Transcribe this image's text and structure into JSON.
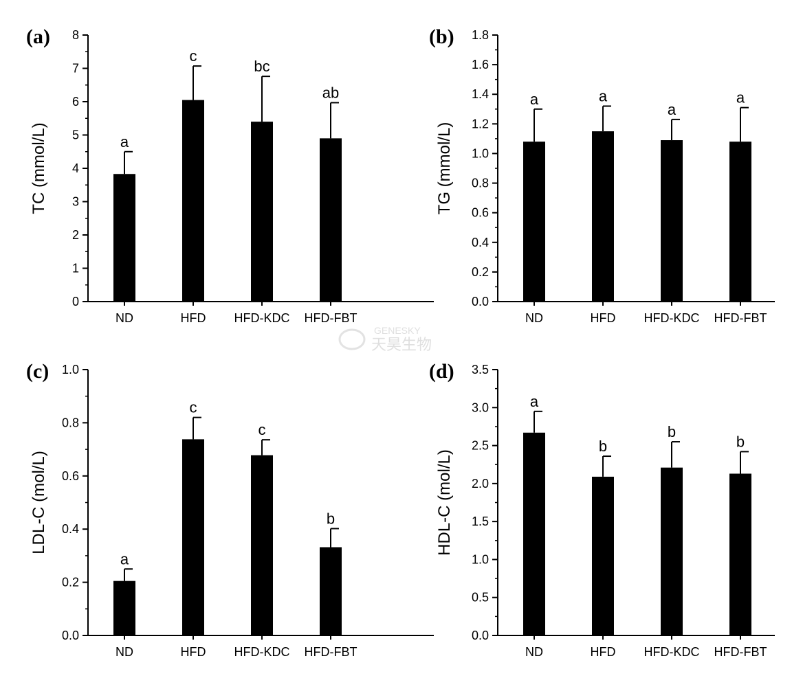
{
  "watermark": {
    "brand": "GENESKY",
    "cn": "天昊生物"
  },
  "colors": {
    "bar": "#000000",
    "axis": "#000000",
    "background": "#ffffff"
  },
  "chart_data": [
    {
      "type": "bar",
      "panel_label": "(a)",
      "ylabel": "TC (mmol/L)",
      "categories": [
        "ND",
        "HFD",
        "HFD-KDC",
        "HFD-FBT"
      ],
      "values": [
        3.83,
        6.05,
        5.4,
        4.9
      ],
      "error": [
        0.67,
        1.02,
        1.36,
        1.07
      ],
      "significance": [
        "a",
        "c",
        "bc",
        "ab"
      ],
      "ylim": [
        0,
        8
      ],
      "yticks": [
        "0",
        "1",
        "2",
        "3",
        "4",
        "5",
        "6",
        "7",
        "8"
      ]
    },
    {
      "type": "bar",
      "panel_label": "(b)",
      "ylabel": "TG (mmol/L)",
      "categories": [
        "ND",
        "HFD",
        "HFD-KDC",
        "HFD-FBT"
      ],
      "values": [
        1.08,
        1.15,
        1.09,
        1.08
      ],
      "error": [
        0.22,
        0.17,
        0.14,
        0.23
      ],
      "significance": [
        "a",
        "a",
        "a",
        "a"
      ],
      "ylim": [
        0,
        1.8
      ],
      "yticks": [
        "0.0",
        "0.2",
        "0.4",
        "0.6",
        "0.8",
        "1.0",
        "1.2",
        "1.4",
        "1.6",
        "1.8"
      ]
    },
    {
      "type": "bar",
      "panel_label": "(c)",
      "ylabel": "LDL-C (mol/L)",
      "categories": [
        "ND",
        "HFD",
        "HFD-KDC",
        "HFD-FBT"
      ],
      "values": [
        0.205,
        0.738,
        0.678,
        0.332
      ],
      "error": [
        0.045,
        0.082,
        0.058,
        0.07
      ],
      "significance": [
        "a",
        "c",
        "c",
        "b"
      ],
      "ylim": [
        0,
        1.0
      ],
      "yticks": [
        "0.0",
        "0.2",
        "0.4",
        "0.6",
        "0.8",
        "1.0"
      ]
    },
    {
      "type": "bar",
      "panel_label": "(d)",
      "ylabel": "HDL-C (mol/L)",
      "categories": [
        "ND",
        "HFD",
        "HFD-KDC",
        "HFD-FBT"
      ],
      "values": [
        2.67,
        2.09,
        2.21,
        2.13
      ],
      "error": [
        0.28,
        0.27,
        0.34,
        0.29
      ],
      "significance": [
        "a",
        "b",
        "b",
        "b"
      ],
      "ylim": [
        0,
        3.5
      ],
      "yticks": [
        "0.0",
        "0.5",
        "1.0",
        "1.5",
        "2.0",
        "2.5",
        "3.0",
        "3.5"
      ]
    }
  ]
}
